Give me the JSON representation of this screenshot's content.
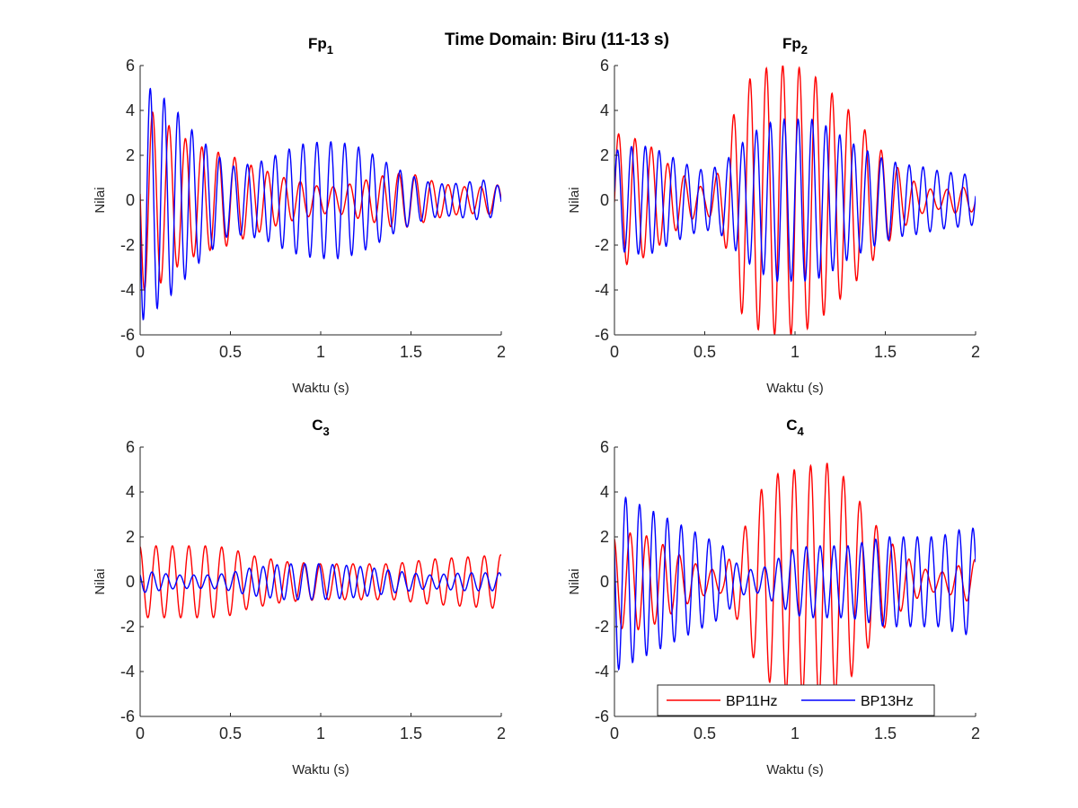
{
  "figure": {
    "suptitle": "Time Domain: Biru (11-13 s)"
  },
  "legend": {
    "entries": [
      "BP11Hz",
      "BP13Hz"
    ],
    "placement": "bottom-center (in C4 panel)"
  },
  "colors": {
    "BP11Hz": "#ff0000",
    "BP13Hz": "#0000ff",
    "axis": "#262626"
  },
  "chart_data": [
    {
      "type": "line",
      "title": "Fp1",
      "title_main": "Fp",
      "title_sub": "1",
      "xlabel": "Waktu (s)",
      "ylabel": "Nilai",
      "xlim": [
        0,
        2
      ],
      "ylim": [
        -6,
        6
      ],
      "xticks": [
        "0",
        "0.5",
        "1",
        "1.5",
        "2"
      ],
      "yticks": [
        "-6",
        "-4",
        "-2",
        "0",
        "2",
        "4",
        "6"
      ],
      "grid": false,
      "series": [
        {
          "name": "BP11Hz",
          "freq_hz": 11,
          "phase": 1.5,
          "offset": 0,
          "envelope_t": [
            0,
            0.05,
            0.1,
            0.2,
            0.3,
            0.4,
            0.5,
            0.6,
            0.7,
            0.8,
            0.9,
            1.0,
            1.1,
            1.2,
            1.3,
            1.4,
            1.5,
            1.6,
            1.7,
            1.8,
            1.9,
            2.0
          ],
          "envelope_a": [
            4.0,
            4.0,
            3.8,
            3.0,
            2.5,
            2.2,
            2.0,
            1.6,
            1.3,
            1.0,
            0.8,
            0.6,
            0.6,
            0.8,
            1.0,
            1.2,
            1.2,
            0.9,
            0.7,
            0.6,
            0.6,
            0.7
          ]
        },
        {
          "name": "BP13Hz",
          "freq_hz": 13,
          "phase": 1.7,
          "offset": 0,
          "envelope_t": [
            0,
            0.05,
            0.1,
            0.2,
            0.3,
            0.4,
            0.5,
            0.6,
            0.7,
            0.8,
            0.9,
            1.0,
            1.1,
            1.2,
            1.3,
            1.4,
            1.5,
            1.6,
            1.7,
            1.8,
            1.9,
            2.0
          ],
          "envelope_a": [
            5.5,
            5.0,
            4.8,
            4.0,
            3.0,
            2.2,
            1.5,
            1.6,
            1.8,
            2.2,
            2.5,
            2.6,
            2.6,
            2.4,
            2.0,
            1.5,
            1.1,
            0.8,
            0.7,
            0.8,
            0.9,
            0.6
          ]
        }
      ]
    },
    {
      "type": "line",
      "title": "Fp2",
      "title_main": "Fp",
      "title_sub": "2",
      "xlabel": "Waktu (s)",
      "ylabel": "Nilai",
      "xlim": [
        0,
        2
      ],
      "ylim": [
        -6,
        6
      ],
      "xticks": [
        "0",
        "0.5",
        "1",
        "1.5",
        "2"
      ],
      "yticks": [
        "-6",
        "-4",
        "-2",
        "0",
        "2",
        "4",
        "6"
      ],
      "grid": false,
      "series": [
        {
          "name": "BP11Hz",
          "freq_hz": 11,
          "phase": -1.6,
          "offset": 0,
          "envelope_t": [
            0,
            0.1,
            0.2,
            0.3,
            0.4,
            0.5,
            0.6,
            0.65,
            0.7,
            0.8,
            0.9,
            1.0,
            1.1,
            1.2,
            1.3,
            1.4,
            1.5,
            1.6,
            1.7,
            1.8,
            1.9,
            2.0
          ],
          "envelope_a": [
            3.0,
            2.8,
            2.4,
            1.6,
            1.0,
            0.5,
            1.5,
            3.5,
            5.0,
            5.8,
            6.0,
            6.0,
            5.6,
            4.8,
            4.0,
            3.0,
            2.0,
            1.2,
            0.6,
            0.4,
            0.6,
            0.5
          ]
        },
        {
          "name": "BP13Hz",
          "freq_hz": 13,
          "phase": -1.4,
          "offset": 0,
          "envelope_t": [
            0,
            0.1,
            0.2,
            0.3,
            0.4,
            0.5,
            0.6,
            0.7,
            0.8,
            0.9,
            1.0,
            1.1,
            1.2,
            1.3,
            1.4,
            1.5,
            1.6,
            1.7,
            1.8,
            1.9,
            2.0
          ],
          "envelope_a": [
            2.2,
            2.4,
            2.4,
            2.0,
            1.6,
            1.3,
            1.6,
            2.5,
            3.2,
            3.6,
            3.6,
            3.6,
            3.2,
            2.6,
            2.2,
            1.8,
            1.6,
            1.5,
            1.3,
            1.2,
            1.1
          ]
        }
      ]
    },
    {
      "type": "line",
      "title": "C3",
      "title_main": "C",
      "title_sub": "3",
      "xlabel": "Waktu (s)",
      "ylabel": "Nilai",
      "xlim": [
        0,
        2
      ],
      "ylim": [
        -6,
        6
      ],
      "xticks": [
        "0",
        "0.5",
        "1",
        "1.5",
        "2"
      ],
      "yticks": [
        "-6",
        "-4",
        "-2",
        "0",
        "2",
        "4",
        "6"
      ],
      "grid": false,
      "series": [
        {
          "name": "BP11Hz",
          "freq_hz": 11,
          "phase": 0.2,
          "offset": 0,
          "envelope_t": [
            0,
            0.2,
            0.4,
            0.5,
            0.6,
            0.8,
            1.0,
            1.2,
            1.4,
            1.6,
            1.8,
            2.0
          ],
          "envelope_a": [
            1.6,
            1.6,
            1.6,
            1.5,
            1.2,
            0.9,
            0.8,
            0.8,
            0.8,
            1.0,
            1.1,
            1.2
          ]
        },
        {
          "name": "BP13Hz",
          "freq_hz": 13,
          "phase": 0.9,
          "offset": 0,
          "envelope_t": [
            0,
            0.2,
            0.4,
            0.5,
            0.6,
            0.8,
            1.0,
            1.2,
            1.4,
            1.6,
            1.8,
            2.0
          ],
          "envelope_a": [
            0.5,
            0.3,
            0.3,
            0.4,
            0.6,
            0.8,
            0.8,
            0.7,
            0.5,
            0.3,
            0.4,
            0.4
          ]
        }
      ]
    },
    {
      "type": "line",
      "title": "C4",
      "title_main": "C",
      "title_sub": "4",
      "xlabel": "Waktu (s)",
      "ylabel": "Nilai",
      "xlim": [
        0,
        2
      ],
      "ylim": [
        -6,
        6
      ],
      "xticks": [
        "0",
        "0.5",
        "1",
        "1.5",
        "2"
      ],
      "yticks": [
        "-6",
        "-4",
        "-2",
        "0",
        "2",
        "4",
        "6"
      ],
      "grid": false,
      "series": [
        {
          "name": "BP11Hz",
          "freq_hz": 11,
          "phase": 0.3,
          "offset": 0,
          "envelope_t": [
            0,
            0.1,
            0.2,
            0.3,
            0.4,
            0.5,
            0.6,
            0.7,
            0.8,
            0.9,
            1.0,
            1.1,
            1.2,
            1.3,
            1.4,
            1.5,
            1.6,
            1.7,
            1.8,
            1.9,
            2.0
          ],
          "envelope_a": [
            2.0,
            2.2,
            2.0,
            1.5,
            1.0,
            0.6,
            0.5,
            2.0,
            4.0,
            4.8,
            5.0,
            5.2,
            5.3,
            4.4,
            3.0,
            2.0,
            1.2,
            0.6,
            0.4,
            0.7,
            1.0
          ]
        },
        {
          "name": "BP13Hz",
          "freq_hz": 13,
          "phase": 1.2,
          "offset": 0,
          "envelope_t": [
            0,
            0.05,
            0.1,
            0.2,
            0.3,
            0.4,
            0.5,
            0.6,
            0.7,
            0.8,
            0.9,
            1.0,
            1.1,
            1.2,
            1.3,
            1.4,
            1.5,
            1.6,
            1.7,
            1.8,
            1.9,
            2.0
          ],
          "envelope_a": [
            4.0,
            3.8,
            3.6,
            3.2,
            2.8,
            2.4,
            2.0,
            1.6,
            0.6,
            0.5,
            1.0,
            1.5,
            1.6,
            1.6,
            1.6,
            1.8,
            2.0,
            2.0,
            2.0,
            2.0,
            2.3,
            2.4
          ]
        }
      ]
    }
  ]
}
